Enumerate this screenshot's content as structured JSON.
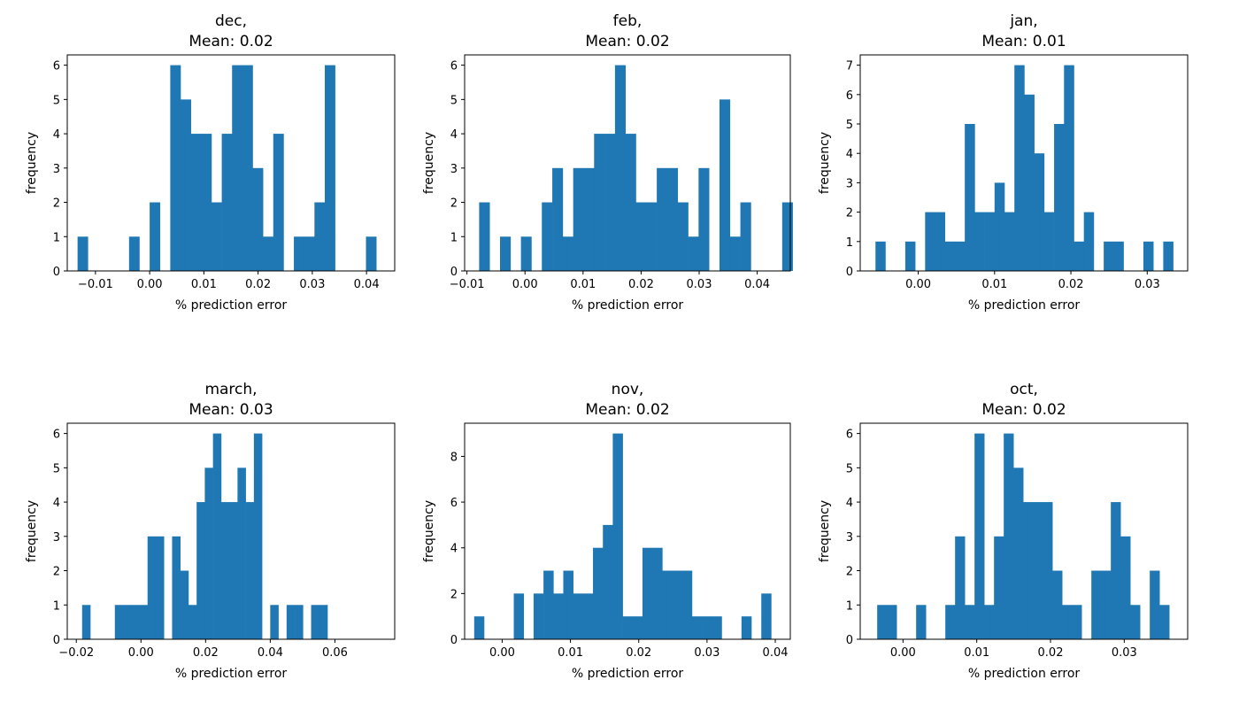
{
  "chart_data": [
    {
      "type": "bar",
      "title": "dec,",
      "subtitle": "Mean: 0.02",
      "xlabel": "% prediction error",
      "ylabel": "frequency",
      "xlim": [
        -0.0152,
        0.0452
      ],
      "ylim": [
        0,
        6.3
      ],
      "xticks": [
        -0.01,
        0.0,
        0.01,
        0.02,
        0.03,
        0.04
      ],
      "xtick_labels": [
        "−0.01",
        "0.00",
        "0.01",
        "0.02",
        "0.03",
        "0.04"
      ],
      "yticks": [
        0,
        1,
        2,
        3,
        4,
        5,
        6
      ],
      "bins": {
        "start": -0.0133,
        "width": 0.0019,
        "counts": [
          1,
          0,
          0,
          0,
          0,
          1,
          0,
          2,
          0,
          6,
          5,
          4,
          4,
          2,
          4,
          6,
          6,
          3,
          1,
          4,
          0,
          1,
          1,
          2,
          6,
          0,
          0,
          0,
          1
        ]
      }
    },
    {
      "type": "bar",
      "title": "feb,",
      "subtitle": "Mean: 0.02",
      "xlabel": "% prediction error",
      "ylabel": "frequency",
      "xlim": [
        -0.0104,
        0.0457
      ],
      "ylim": [
        0,
        6.3
      ],
      "xticks": [
        -0.01,
        0.0,
        0.01,
        0.02,
        0.03,
        0.04
      ],
      "xtick_labels": [
        "−0.01",
        "0.00",
        "0.01",
        "0.02",
        "0.03",
        "0.04"
      ],
      "yticks": [
        0,
        1,
        2,
        3,
        4,
        5,
        6
      ],
      "bins": {
        "start": -0.0079,
        "width": 0.0018,
        "counts": [
          2,
          0,
          1,
          0,
          1,
          0,
          2,
          3,
          1,
          3,
          3,
          4,
          4,
          6,
          4,
          2,
          2,
          3,
          3,
          2,
          1,
          3,
          0,
          5,
          1,
          2,
          0,
          0,
          0,
          2
        ]
      }
    },
    {
      "type": "bar",
      "title": "jan,",
      "subtitle": "Mean: 0.01",
      "xlabel": "% prediction error",
      "ylabel": "frequency",
      "xlim": [
        -0.0076,
        0.0353
      ],
      "ylim": [
        0,
        7.35
      ],
      "xticks": [
        0.0,
        0.01,
        0.02,
        0.03
      ],
      "xtick_labels": [
        "0.00",
        "0.01",
        "0.02",
        "0.03"
      ],
      "yticks": [
        0,
        1,
        2,
        3,
        4,
        5,
        6,
        7
      ],
      "bins": {
        "start": -0.0056,
        "width": 0.0013,
        "counts": [
          1,
          0,
          0,
          1,
          0,
          2,
          2,
          1,
          1,
          5,
          2,
          2,
          3,
          2,
          7,
          6,
          4,
          2,
          5,
          7,
          1,
          2,
          0,
          1,
          1,
          0,
          0,
          1,
          0,
          1
        ]
      }
    },
    {
      "type": "bar",
      "title": "march,",
      "subtitle": "Mean: 0.03",
      "xlabel": "% prediction error",
      "ylabel": "frequency",
      "xlim": [
        -0.0228,
        0.0785
      ],
      "ylim": [
        0,
        6.3
      ],
      "xticks": [
        -0.02,
        0.0,
        0.02,
        0.04,
        0.06
      ],
      "xtick_labels": [
        "−0.02",
        "0.00",
        "0.02",
        "0.04",
        "0.06"
      ],
      "yticks": [
        0,
        1,
        2,
        3,
        4,
        5,
        6
      ],
      "bins": {
        "start": -0.0182,
        "width": 0.00253,
        "counts": [
          1,
          0,
          0,
          0,
          1,
          1,
          1,
          1,
          3,
          3,
          0,
          3,
          2,
          1,
          4,
          5,
          6,
          4,
          4,
          5,
          4,
          6,
          0,
          1,
          0,
          1,
          1,
          0,
          1,
          1
        ]
      }
    },
    {
      "type": "bar",
      "title": "nov,",
      "subtitle": "Mean: 0.02",
      "xlabel": "% prediction error",
      "ylabel": "frequency",
      "xlim": [
        -0.0055,
        0.0422
      ],
      "ylim": [
        0,
        9.45
      ],
      "xticks": [
        0.0,
        0.01,
        0.02,
        0.03,
        0.04
      ],
      "xtick_labels": [
        "0.00",
        "0.01",
        "0.02",
        "0.03",
        "0.04"
      ],
      "yticks": [
        0,
        2,
        4,
        6,
        8
      ],
      "bins": {
        "start": -0.0041,
        "width": 0.00145,
        "counts": [
          1,
          0,
          0,
          0,
          2,
          0,
          2,
          3,
          2,
          3,
          2,
          2,
          4,
          5,
          9,
          1,
          1,
          4,
          4,
          3,
          3,
          3,
          1,
          1,
          1,
          0,
          0,
          1,
          0,
          2
        ]
      }
    },
    {
      "type": "bar",
      "title": "oct,",
      "subtitle": "Mean: 0.02",
      "xlabel": "% prediction error",
      "ylabel": "frequency",
      "xlim": [
        -0.0058,
        0.0386
      ],
      "ylim": [
        0,
        6.3
      ],
      "xticks": [
        0.0,
        0.01,
        0.02,
        0.03
      ],
      "xtick_labels": [
        "0.00",
        "0.01",
        "0.02",
        "0.03"
      ],
      "yticks": [
        0,
        1,
        2,
        3,
        4,
        5,
        6
      ],
      "bins": {
        "start": -0.0035,
        "width": 0.00132,
        "counts": [
          1,
          1,
          0,
          0,
          1,
          0,
          0,
          1,
          3,
          1,
          6,
          1,
          3,
          6,
          5,
          4,
          4,
          4,
          2,
          1,
          1,
          0,
          2,
          2,
          4,
          3,
          1,
          0,
          2,
          1
        ]
      }
    }
  ],
  "colors": {
    "bar": "#1f77b4",
    "axes": "#000000",
    "background": "#ffffff"
  }
}
